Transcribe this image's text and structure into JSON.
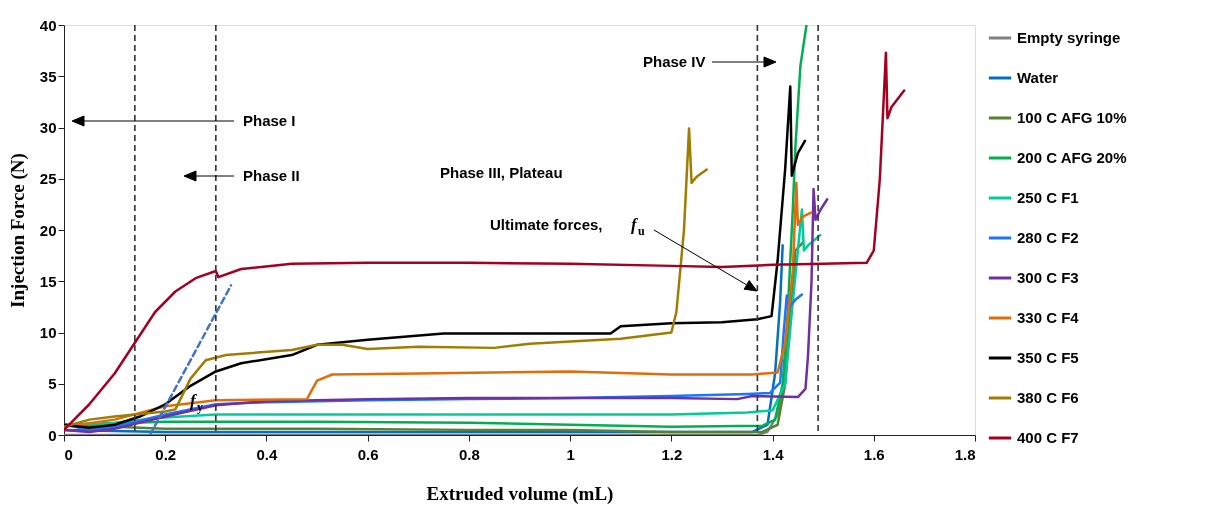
{
  "chart_data": {
    "type": "line",
    "xlabel": "Extruded volume (mL)",
    "ylabel": "Injection Force (N)",
    "xlim": [
      0,
      1.8
    ],
    "xticks": [
      0,
      0.2,
      0.4,
      0.6,
      0.8,
      1,
      1.2,
      1.4,
      1.6,
      1.8
    ],
    "ylim": [
      0,
      40
    ],
    "yticks": [
      0,
      5,
      10,
      15,
      20,
      25,
      30,
      35,
      40
    ],
    "grid": false,
    "legend": "right",
    "line_style": "solid",
    "marker": "none",
    "ref_lines": [
      {
        "axis": "x",
        "value": 0.14,
        "color": "#333333",
        "line_style": "dashed"
      },
      {
        "axis": "x",
        "value": 0.3,
        "color": "#333333",
        "line_style": "dashed"
      },
      {
        "axis": "x",
        "value": 1.37,
        "color": "#333333",
        "line_style": "dashed"
      },
      {
        "axis": "x",
        "value": 1.49,
        "color": "#333333",
        "line_style": "dashed"
      }
    ],
    "annotations": [
      "Phase I",
      "Phase II",
      "Phase III, Plateau",
      "Phase IV",
      "Ultimate forces, f$_{u}$",
      "f$_{y}$"
    ],
    "series": [
      {
        "name": "Empty syringe",
        "color": "#808080",
        "x": [
          0,
          0.5,
          1.0,
          1.37,
          1.39,
          1.41,
          1.425,
          1.435,
          1.445
        ],
        "values": [
          0,
          0,
          0,
          0,
          0.3,
          2,
          6,
          12,
          17
        ]
      },
      {
        "name": "Water",
        "color": "#0070c0",
        "x": [
          0,
          0.2,
          0.5,
          0.8,
          1.0,
          1.2,
          1.36,
          1.39,
          1.405,
          1.415,
          1.42
        ],
        "values": [
          0.5,
          0.3,
          0.3,
          0.3,
          0.3,
          0.3,
          0.3,
          1,
          6,
          13,
          18.5
        ]
      },
      {
        "name": "100 C AFG 10%",
        "color": "#548235",
        "x": [
          0,
          0.2,
          0.5,
          0.8,
          1.0,
          1.2,
          1.38,
          1.41,
          1.425,
          1.435,
          1.445,
          1.46
        ],
        "values": [
          1.0,
          0.6,
          0.6,
          0.5,
          0.5,
          0.3,
          0.3,
          1,
          5,
          12,
          18,
          18.8
        ]
      },
      {
        "name": "200 C AFG 20%",
        "color": "#00b050",
        "x": [
          0,
          0.2,
          0.5,
          0.8,
          1.0,
          1.2,
          1.38,
          1.405,
          1.42,
          1.43,
          1.44,
          1.445,
          1.455,
          1.467
        ],
        "values": [
          1,
          1.3,
          1.3,
          1.2,
          1.0,
          0.8,
          0.9,
          1.5,
          5,
          12,
          22,
          28,
          36,
          40
        ]
      },
      {
        "name": "250 C F1",
        "color": "#00cc99",
        "x": [
          0,
          0.1,
          0.2,
          0.3,
          0.5,
          0.8,
          1.0,
          1.2,
          1.35,
          1.4,
          1.425,
          1.44,
          1.458,
          1.462,
          1.47,
          1.494
        ],
        "values": [
          1,
          1.2,
          1.7,
          2.0,
          2.0,
          2.0,
          2.0,
          2.0,
          2.2,
          2.4,
          5,
          13,
          22,
          18,
          18.5,
          19.5
        ]
      },
      {
        "name": "280 C F2",
        "color": "#1a75ff",
        "x": [
          0,
          0.05,
          0.1,
          0.2,
          0.3,
          0.4,
          0.6,
          0.8,
          1.0,
          1.2,
          1.35,
          1.395,
          1.415,
          1.422,
          1.428,
          1.434,
          1.445,
          1.458
        ],
        "values": [
          1,
          0.5,
          0.8,
          2.0,
          3.0,
          3.2,
          3.4,
          3.5,
          3.6,
          3.8,
          4.0,
          4.1,
          5.1,
          10,
          13.6,
          12.5,
          13.2,
          13.7
        ]
      },
      {
        "name": "300 C F3",
        "color": "#7030a0",
        "x": [
          0,
          0.05,
          0.1,
          0.2,
          0.3,
          0.4,
          0.6,
          0.8,
          1.0,
          1.2,
          1.33,
          1.36,
          1.45,
          1.465,
          1.47,
          1.477,
          1.481,
          1.485,
          1.495,
          1.508
        ],
        "values": [
          0.5,
          0.3,
          0.6,
          1.8,
          2.9,
          3.3,
          3.5,
          3.6,
          3.6,
          3.6,
          3.5,
          3.8,
          3.7,
          4.5,
          7.7,
          15,
          24,
          21,
          22,
          23
        ]
      },
      {
        "name": "330 C F4",
        "color": "#e36c0a",
        "x": [
          0,
          0.1,
          0.2,
          0.3,
          0.48,
          0.5,
          0.53,
          0.7,
          1.0,
          1.2,
          1.36,
          1.41,
          1.425,
          1.44,
          1.447,
          1.45,
          1.46,
          1.476
        ],
        "values": [
          0.8,
          1.5,
          2.8,
          3.4,
          3.5,
          5.3,
          5.9,
          6.0,
          6.2,
          5.9,
          5.9,
          6.1,
          9,
          16,
          24.6,
          20.5,
          21.3,
          21.7
        ]
      },
      {
        "name": "350 C F5",
        "color": "#000000",
        "x": [
          0,
          0.05,
          0.1,
          0.15,
          0.2,
          0.25,
          0.3,
          0.35,
          0.45,
          0.5,
          0.6,
          0.75,
          0.9,
          1.08,
          1.1,
          1.2,
          1.3,
          1.37,
          1.398,
          1.41,
          1.425,
          1.435,
          1.438,
          1.45,
          1.464
        ],
        "values": [
          1,
          0.7,
          1.0,
          1.8,
          3.0,
          4.8,
          6.2,
          7.0,
          7.8,
          8.8,
          9.3,
          9.9,
          9.9,
          9.9,
          10.6,
          10.9,
          11.0,
          11.3,
          11.6,
          17,
          26,
          34,
          25.3,
          27.5,
          28.7
        ]
      },
      {
        "name": "380 C F6",
        "color": "#a07c00",
        "x": [
          0,
          0.05,
          0.1,
          0.2,
          0.22,
          0.25,
          0.28,
          0.32,
          0.45,
          0.5,
          0.55,
          0.6,
          0.7,
          0.85,
          0.92,
          1.1,
          1.2,
          1.21,
          1.225,
          1.235,
          1.24,
          1.25,
          1.27
        ],
        "values": [
          0.8,
          1.5,
          1.8,
          2.3,
          2.5,
          5.5,
          7.3,
          7.8,
          8.3,
          8.8,
          8.8,
          8.4,
          8.6,
          8.5,
          8.9,
          9.4,
          10.0,
          12,
          20,
          29.9,
          24.6,
          25.2,
          25.9
        ]
      },
      {
        "name": "400 C F7",
        "color": "#a50021",
        "x": [
          0,
          0.02,
          0.05,
          0.1,
          0.14,
          0.18,
          0.22,
          0.26,
          0.3,
          0.305,
          0.35,
          0.45,
          0.6,
          0.8,
          1.0,
          1.2,
          1.3,
          1.4,
          1.5,
          1.586,
          1.6,
          1.612,
          1.624,
          1.627,
          1.635,
          1.66
        ],
        "values": [
          0.5,
          1.5,
          3,
          6,
          9,
          12,
          14,
          15.3,
          16,
          15.4,
          16.2,
          16.7,
          16.8,
          16.8,
          16.7,
          16.5,
          16.4,
          16.6,
          16.7,
          16.8,
          18,
          25,
          37.3,
          30.9,
          32,
          33.6
        ]
      },
      {
        "type": "line",
        "color": "#4472c4",
        "line_style": "dashed",
        "x": [
          0.17,
          0.33
        ],
        "values": [
          0,
          14.6
        ]
      }
    ]
  }
}
